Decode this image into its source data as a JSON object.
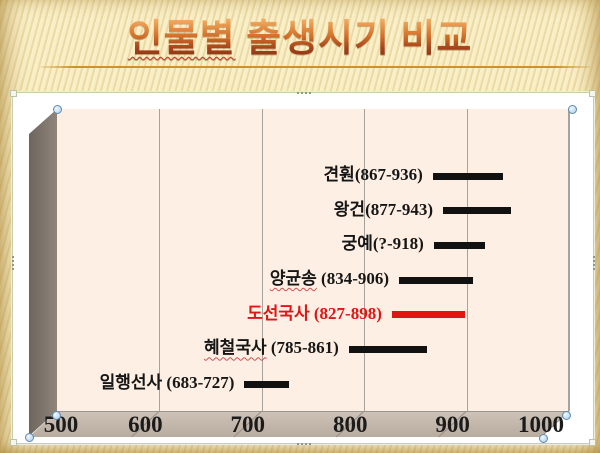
{
  "slide": {
    "title": {
      "full": "인물별 출생시기 비교",
      "misspelled_word": "인물별",
      "rest": " 출생시기 비교"
    }
  },
  "colors": {
    "bar_black": "#111111",
    "accent_red": "#e01515",
    "plot_face_pink": "#fdefe4",
    "background_yellow": "#f8edc2",
    "title_gradient_top": "#f2ac60",
    "title_gradient_bottom": "#872f10"
  },
  "icons": {
    "resize_handle": "round blue circle handle",
    "move_handle": "four-dot hatch handle"
  },
  "chart_data": {
    "type": "bar",
    "orientation": "horizontal-timeline",
    "title": "인물별 출생시기 비교",
    "xlabel": "",
    "ylabel": "",
    "xlim": [
      500,
      1000
    ],
    "x_ticks": [
      500,
      600,
      700,
      800,
      900,
      1000
    ],
    "grid": true,
    "legend": "none",
    "series": [
      {
        "name": "견훤",
        "years_label": "(867-936)",
        "start": 867,
        "end": 936,
        "color": "#111111",
        "misspelled": false,
        "start_unknown": false
      },
      {
        "name": "왕건",
        "years_label": "(877-943)",
        "start": 877,
        "end": 943,
        "color": "#111111",
        "misspelled": false,
        "start_unknown": false
      },
      {
        "name": "궁예",
        "years_label": "(?-918)",
        "start": 868,
        "end": 918,
        "color": "#111111",
        "misspelled": false,
        "start_unknown": true
      },
      {
        "name": "양균송",
        "years_label": " (834-906)",
        "start": 834,
        "end": 906,
        "color": "#111111",
        "misspelled": true,
        "start_unknown": false
      },
      {
        "name": "도선국사",
        "years_label": " (827-898)",
        "start": 827,
        "end": 898,
        "color": "#e01515",
        "misspelled": false,
        "start_unknown": false
      },
      {
        "name": "혜철국사",
        "years_label": " (785-861)",
        "start": 785,
        "end": 861,
        "color": "#111111",
        "misspelled": true,
        "start_unknown": false
      },
      {
        "name": "일행선사",
        "years_label": " (683-727)",
        "start": 683,
        "end": 727,
        "color": "#111111",
        "misspelled": false,
        "start_unknown": false
      }
    ]
  }
}
